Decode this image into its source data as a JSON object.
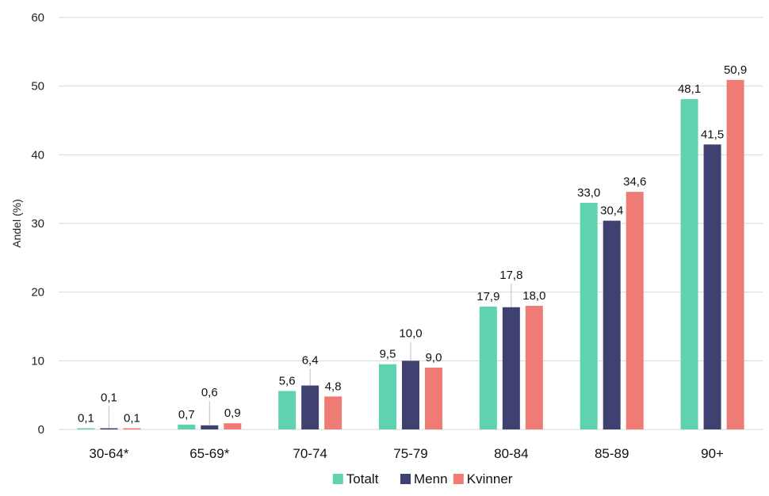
{
  "chart_data": {
    "type": "bar",
    "ylabel": "Andel (%)",
    "ylim": [
      0,
      60
    ],
    "yticks": [
      0,
      10,
      20,
      30,
      40,
      50,
      60
    ],
    "grid": true,
    "legend_position": "bottom",
    "categories": [
      "30-64*",
      "65-69*",
      "70-74",
      "75-79",
      "80-84",
      "85-89",
      "90+"
    ],
    "series": [
      {
        "name": "Totalt",
        "color": "#5fd3b0",
        "values": [
          0.1,
          0.7,
          5.6,
          9.5,
          17.9,
          33.0,
          48.1
        ],
        "labels": [
          "0,1",
          "0,7",
          "5,6",
          "9,5",
          "17,9",
          "33,0",
          "48,1"
        ]
      },
      {
        "name": "Menn",
        "color": "#3f4270",
        "values": [
          0.1,
          0.6,
          6.4,
          10.0,
          17.8,
          30.4,
          41.5
        ],
        "labels": [
          "0,1",
          "0,6",
          "6,4",
          "10,0",
          "17,8",
          "30,4",
          "41,5"
        ]
      },
      {
        "name": "Kvinner",
        "color": "#ee7c74",
        "values": [
          0.1,
          0.9,
          4.8,
          9.0,
          18.0,
          34.6,
          50.9
        ],
        "labels": [
          "0,1",
          "0,9",
          "4,8",
          "9,0",
          "18,0",
          "34,6",
          "50,9"
        ]
      }
    ]
  }
}
